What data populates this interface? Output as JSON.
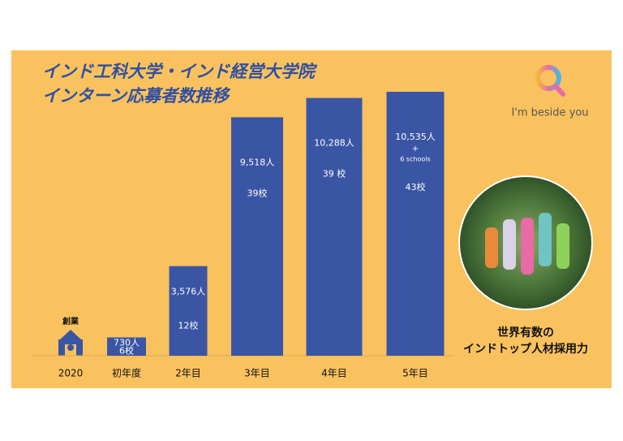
{
  "chart_data": {
    "type": "bar",
    "title": [
      "インド工科大学・インド経営大学院",
      "インターン応募者数推移"
    ],
    "categories": [
      "2020",
      "初年度",
      "2年目",
      "3年目",
      "4年目",
      "5年目"
    ],
    "values": [
      null,
      730,
      3576,
      9518,
      10288,
      10535
    ],
    "value_labels": [
      null,
      "730人",
      "3,576人",
      "9,518人",
      "10,288人",
      "10,535人"
    ],
    "school_labels": [
      null,
      "6校",
      "12校",
      "39校",
      "39 校",
      "43校"
    ],
    "extra_label": [
      "+",
      "6 schools"
    ],
    "founding_label": "創業",
    "color": "#3a55a4",
    "logo": "I'm beside you",
    "caption": [
      "世界有数の",
      "インドトップ人材採用力"
    ]
  }
}
